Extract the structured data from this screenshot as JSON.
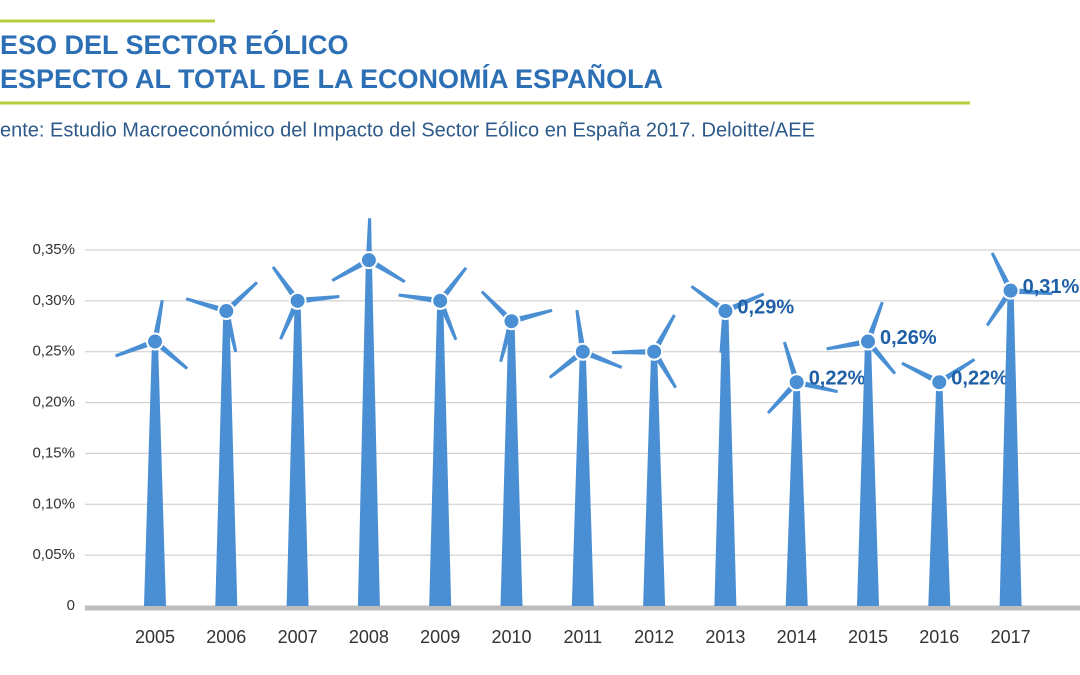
{
  "chart_data": {
    "type": "turbine",
    "title_lines": [
      "ESO DEL SECTOR EÓLICO",
      "ESPECTO AL TOTAL DE LA ECONOMÍA ESPAÑOLA"
    ],
    "source": "ente: Estudio Macroeconómico del Impacto del Sector Eólico en España 2017. Deloitte/AEE",
    "categories": [
      "2005",
      "2006",
      "2007",
      "2008",
      "2009",
      "2010",
      "2011",
      "2012",
      "2013",
      "2014",
      "2015",
      "2016",
      "2017"
    ],
    "values": [
      0.26,
      0.29,
      0.3,
      0.34,
      0.3,
      0.28,
      0.25,
      0.25,
      0.29,
      0.22,
      0.26,
      0.22,
      0.31
    ],
    "value_labels": [
      null,
      null,
      null,
      null,
      null,
      null,
      null,
      null,
      "0,29%",
      "0,22%",
      "0,26%",
      "0,22%",
      "0,31%"
    ],
    "color": "#4a8fd4",
    "ylim": [
      0,
      0.35
    ],
    "yticks": [
      0,
      {
        "value": 0.05,
        "label": "0,05%"
      },
      {
        "value": 0.1,
        "label": "0,10%"
      },
      {
        "value": 0.15,
        "label": "0,15%"
      },
      {
        "value": 0.2,
        "label": "0,20%"
      },
      {
        "value": 0.25,
        "label": "0,25%"
      },
      {
        "value": 0.3,
        "label": "0,30%"
      },
      {
        "value": 0.35,
        "label": "0,35%"
      }
    ],
    "grid": true
  }
}
